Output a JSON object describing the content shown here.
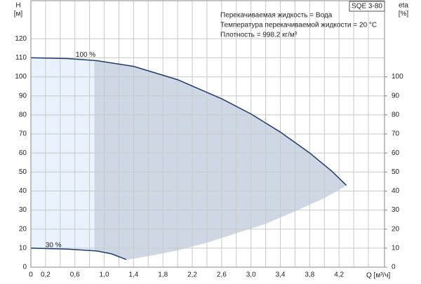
{
  "chart_data": {
    "type": "line",
    "model": "SQE 3-80",
    "annotations": [
      "Перекачиваемая жидкость = Вода",
      "Температура перекачиваемой жидкости = 20 °C",
      "Плотность = 998.2 кг/м³"
    ],
    "y_label": "H",
    "y_unit": "[м]",
    "y2_label": "eta",
    "y2_unit": "[%]",
    "x_label": "Q [м³/ч]",
    "xlim": [
      0,
      4.82
    ],
    "ylim": [
      0,
      140
    ],
    "y2lim": [
      0,
      140
    ],
    "xticks": [
      0,
      {
        "value": 0.2,
        "label": "0,2"
      },
      {
        "value": 0.6,
        "label": "0,6"
      },
      {
        "value": 1.0,
        "label": "1,0"
      },
      {
        "value": 1.4,
        "label": "1,4"
      },
      {
        "value": 1.8,
        "label": "1,8"
      },
      {
        "value": 2.2,
        "label": "2,2"
      },
      {
        "value": 2.6,
        "label": "2,6"
      },
      {
        "value": 3.0,
        "label": "3,0"
      },
      {
        "value": 3.4,
        "label": "3,4"
      },
      {
        "value": 3.8,
        "label": "3,8"
      },
      {
        "value": 4.2,
        "label": "4,2"
      }
    ],
    "xgrid_minor": [
      0.4,
      0.8,
      1.2,
      1.6,
      2.0,
      2.4,
      2.8,
      3.2,
      3.6,
      4.0,
      4.4,
      4.6
    ],
    "yticks": [
      0,
      10,
      20,
      30,
      40,
      50,
      60,
      70,
      80,
      90,
      100,
      110,
      120
    ],
    "y2ticks": [
      0,
      10,
      20,
      30,
      40,
      50,
      60,
      70,
      80,
      90,
      100
    ],
    "grid": true,
    "series": [
      {
        "name": "100 %",
        "color": "#1f3a6e",
        "x": [
          0,
          0.5,
          0.9,
          1.4,
          2.0,
          2.6,
          3.0,
          3.4,
          3.8,
          4.1,
          4.3
        ],
        "values": [
          110,
          109.6,
          108.5,
          105.5,
          98.5,
          88.5,
          80.5,
          71,
          60,
          50.5,
          43
        ]
      },
      {
        "name": "30 %",
        "color": "#1f3a6e",
        "x": [
          0,
          0.5,
          0.9,
          1.1,
          1.3
        ],
        "values": [
          10,
          9.5,
          8.5,
          7,
          4
        ]
      }
    ],
    "area_lower": {
      "color": "#cdd8e4",
      "x": [
        1.3,
        1.6,
        2.0,
        2.4,
        2.8,
        3.2,
        3.6,
        4.0,
        4.3
      ],
      "values": [
        4,
        6,
        9,
        13,
        18,
        23,
        29.5,
        36.5,
        43
      ]
    },
    "highlight_x": 0.87,
    "highlight_color": "#e9f2fc"
  }
}
